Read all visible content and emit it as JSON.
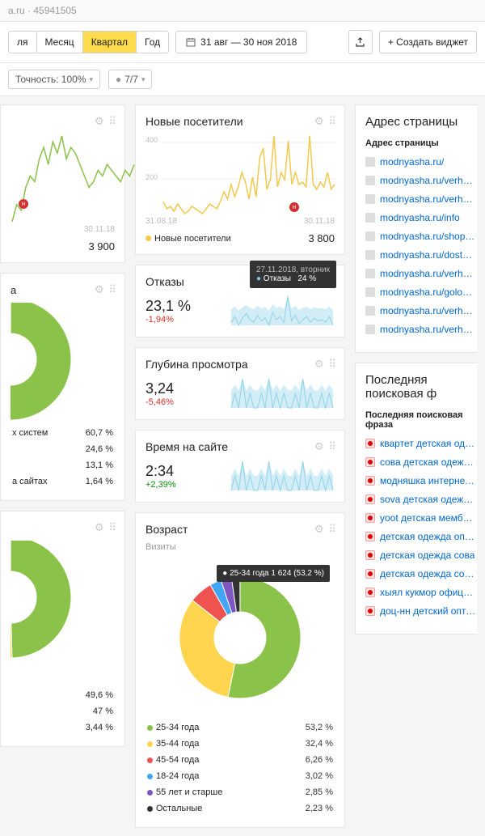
{
  "breadcrumb": "a.ru · 45941505",
  "periods": {
    "items": [
      "ля",
      "Месяц",
      "Квартал",
      "Год"
    ],
    "active_index": 2
  },
  "date_range": "31 авг — 30 ноя 2018",
  "create_widget": "+ Создать виджет",
  "precision": "Точность: 100%",
  "filter": "7/7",
  "visitors_card": {
    "title": "Новые посетители",
    "ytick1": "400",
    "ytick2": "200",
    "x_from": "31.08.18",
    "x_to": "30.11.18",
    "legend": "Новые посетители",
    "value": "3 800",
    "color": "#f2c94c",
    "data": [
      80,
      50,
      60,
      40,
      70,
      50,
      30,
      40,
      60,
      50,
      40,
      30,
      50,
      70,
      60,
      50,
      80,
      120,
      90,
      150,
      100,
      140,
      200,
      160,
      90,
      180,
      100,
      260,
      300,
      130,
      170,
      350,
      140,
      200,
      170,
      330,
      150,
      200,
      150,
      160,
      140,
      350,
      150,
      130,
      160,
      140,
      200,
      130,
      150
    ]
  },
  "line_card_left": {
    "x_to": "30.11.18",
    "value": "3 900",
    "color": "#8bc34a",
    "data": [
      120,
      150,
      140,
      180,
      200,
      190,
      230,
      250,
      220,
      260,
      240,
      270,
      230,
      250,
      240,
      220,
      200,
      180,
      190,
      210,
      200,
      220,
      210,
      200,
      190,
      210,
      200,
      220
    ]
  },
  "pie_left1": {
    "slices": [
      {
        "color": "#8bc34a",
        "pct": 60.7
      },
      {
        "color": "#ffd54f",
        "pct": 24.6
      },
      {
        "color": "#42a5f5",
        "pct": 13.1
      },
      {
        "color": "#ef5350",
        "pct": 1.64
      }
    ],
    "rows": [
      {
        "label": "х систем",
        "pct": "60,7 %"
      },
      {
        "label": "",
        "pct": "24,6 %"
      },
      {
        "label": "",
        "pct": "13,1 %"
      },
      {
        "label": "а сайтах",
        "pct": "1,64 %"
      }
    ]
  },
  "pie_left2": {
    "slices": [
      {
        "color": "#8bc34a",
        "pct": 49.6
      },
      {
        "color": "#ffd54f",
        "pct": 47
      },
      {
        "color": "#ef5350",
        "pct": 3.44
      }
    ],
    "rows": [
      {
        "label": "",
        "pct": "49,6 %"
      },
      {
        "label": "",
        "pct": "47 %"
      },
      {
        "label": "",
        "pct": "3,44 %"
      }
    ]
  },
  "bounce": {
    "title": "Отказы",
    "value": "23,1 %",
    "delta": "-1,94%",
    "delta_class": "neg",
    "tooltip_date": "27.11.2018, вторник",
    "tooltip_label": "Отказы",
    "tooltip_val": "24 %",
    "color": "#8fd3e8",
    "data": [
      22,
      26,
      20,
      25,
      28,
      24,
      22,
      27,
      23,
      25,
      20,
      29,
      24,
      26,
      22,
      40,
      23,
      27,
      21,
      24,
      26,
      22,
      25,
      23,
      24,
      22,
      26,
      20
    ]
  },
  "depth": {
    "title": "Глубина просмотра",
    "value": "3,24",
    "delta": "-5,46%",
    "delta_class": "neg",
    "color": "#8fd3e8",
    "data": [
      3,
      4,
      3,
      5,
      3,
      4,
      3,
      3,
      4,
      3,
      5,
      3,
      4,
      3,
      4,
      3,
      3,
      4,
      3,
      5,
      3,
      4,
      3,
      3,
      4,
      3,
      4,
      3
    ]
  },
  "time": {
    "title": "Время на сайте",
    "value": "2:34",
    "delta": "+2,39%",
    "delta_class": "pos",
    "color": "#8fd3e8",
    "data": [
      2,
      3,
      2,
      4,
      2,
      3,
      2,
      2,
      3,
      2,
      4,
      2,
      3,
      2,
      3,
      2,
      2,
      3,
      2,
      4,
      2,
      3,
      2,
      2,
      3,
      2,
      3,
      2
    ]
  },
  "age": {
    "title": "Возраст",
    "subtitle": "Визиты",
    "tooltip": "● 25-34 года   1 624 (53,2 %)",
    "slices": [
      {
        "label": "25-34 года",
        "color": "#8bc34a",
        "pct": 53.2
      },
      {
        "label": "35-44 года",
        "color": "#ffd54f",
        "pct": 32.4
      },
      {
        "label": "45-54 года",
        "color": "#ef5350",
        "pct": 6.26
      },
      {
        "label": "18-24 года",
        "color": "#42a5f5",
        "pct": 3.02
      },
      {
        "label": "55 лет и старше",
        "color": "#7e57c2",
        "pct": 2.85
      },
      {
        "label": "Остальные",
        "color": "#333",
        "pct": 2.23
      }
    ],
    "legend": [
      {
        "label": "25-34 года",
        "pct": "53,2 %",
        "color": "#8bc34a"
      },
      {
        "label": "35-44 года",
        "pct": "32,4 %",
        "color": "#ffd54f"
      },
      {
        "label": "45-54 года",
        "pct": "6,26 %",
        "color": "#ef5350"
      },
      {
        "label": "18-24 года",
        "pct": "3,02 %",
        "color": "#42a5f5"
      },
      {
        "label": "55 лет и старше",
        "pct": "2,85 %",
        "color": "#7e57c2"
      },
      {
        "label": "Остальные",
        "pct": "2,23 %",
        "color": "#333"
      }
    ]
  },
  "pages": {
    "title": "Адрес страницы",
    "subtitle": "Адрес страницы",
    "items": [
      "modnyasha.ru/",
      "modnyasha.ru/verhnyaya-ode",
      "modnyasha.ru/verhnyaya-ode",
      "modnyasha.ru/info",
      "modnyasha.ru/shopping-cart",
      "modnyasha.ru/dostavka-i-opla",
      "modnyasha.ru/verhnyaya-ode",
      "modnyasha.ru/golovnye-ubor",
      "modnyasha.ru/verhnyaya-ode",
      "modnyasha.ru/verhnyaya-ode"
    ]
  },
  "search": {
    "title": "Последняя поисковая ф",
    "subtitle": "Последняя поисковая фраза",
    "items": [
      "квартет детская одежда офи",
      "сова детская одежда официа",
      "модняшка интернет магазин",
      "sova детская одежда официа",
      "yoot детская мембранная од",
      "детская одежда оптом",
      "детская одежда сова",
      "детская одежда сова кирово-",
      "хыял кукмор официальный са",
      "доц-нн детский оптовый цен"
    ]
  }
}
